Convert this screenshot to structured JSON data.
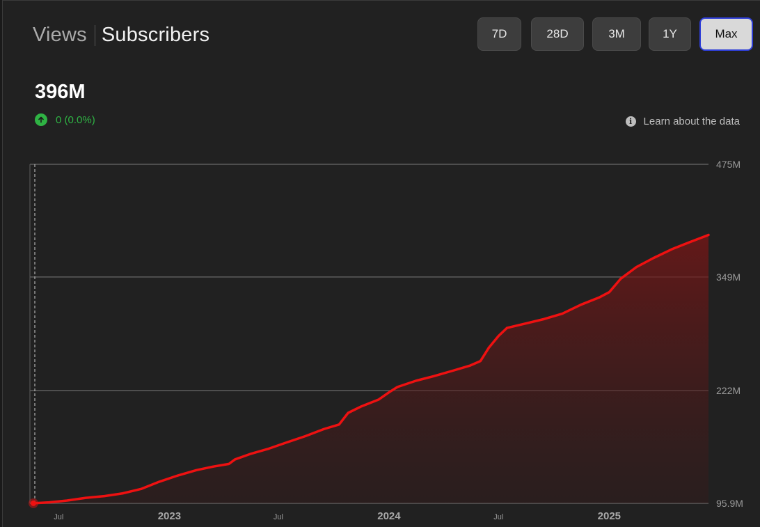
{
  "tabs": {
    "views_label": "Views",
    "subscribers_label": "Subscribers"
  },
  "range_buttons": [
    "7D",
    "28D",
    "3M",
    "1Y",
    "Max"
  ],
  "selected_range": "Max",
  "summary": {
    "value": "396M",
    "change": "0 (0.0%)",
    "change_direction": "up",
    "change_color": "#2fb344"
  },
  "learn_link": {
    "label": "Learn about the data",
    "icon": "info-icon"
  },
  "colors": {
    "line": "#ee1111",
    "fill_top": "#7a1616",
    "grid": "#5e5e5e",
    "axis_text": "#9a9a9a"
  },
  "chart_data": {
    "type": "area",
    "title": "",
    "xlabel": "",
    "ylabel": "",
    "y_ticks": [
      {
        "value": 95.9,
        "label": "95.9M"
      },
      {
        "value": 222,
        "label": "222M"
      },
      {
        "value": 349,
        "label": "349M"
      },
      {
        "value": 475,
        "label": "475M"
      }
    ],
    "ylim": [
      95.9,
      475
    ],
    "xlim": [
      "2022-05-20",
      "2025-06-15"
    ],
    "x_ticks": [
      {
        "date": "2022-07-01",
        "label": "Jul",
        "major": false
      },
      {
        "date": "2023-01-01",
        "label": "2023",
        "major": true
      },
      {
        "date": "2023-07-01",
        "label": "Jul",
        "major": false
      },
      {
        "date": "2024-01-01",
        "label": "2024",
        "major": true
      },
      {
        "date": "2024-07-01",
        "label": "Jul",
        "major": false
      },
      {
        "date": "2025-01-01",
        "label": "2025",
        "major": true
      }
    ],
    "cursor_date": "2022-05-20",
    "grid": true,
    "legend": "none",
    "series": [
      {
        "unit": "M",
        "points": [
          [
            "2022-05-20",
            96
          ],
          [
            "2022-06-15",
            97
          ],
          [
            "2022-07-15",
            99
          ],
          [
            "2022-08-15",
            102
          ],
          [
            "2022-09-15",
            104
          ],
          [
            "2022-10-15",
            107
          ],
          [
            "2022-11-15",
            112
          ],
          [
            "2022-12-15",
            120
          ],
          [
            "2023-01-15",
            127
          ],
          [
            "2023-02-15",
            133
          ],
          [
            "2023-03-15",
            137
          ],
          [
            "2023-04-10",
            140
          ],
          [
            "2023-04-20",
            145
          ],
          [
            "2023-05-15",
            151
          ],
          [
            "2023-06-15",
            157
          ],
          [
            "2023-07-15",
            164
          ],
          [
            "2023-08-15",
            171
          ],
          [
            "2023-09-15",
            179
          ],
          [
            "2023-10-10",
            184
          ],
          [
            "2023-10-25",
            197
          ],
          [
            "2023-11-15",
            204
          ],
          [
            "2023-12-15",
            212
          ],
          [
            "2024-01-01",
            220
          ],
          [
            "2024-01-15",
            226
          ],
          [
            "2024-02-15",
            233
          ],
          [
            "2024-03-15",
            238
          ],
          [
            "2024-04-15",
            244
          ],
          [
            "2024-05-15",
            250
          ],
          [
            "2024-06-01",
            255
          ],
          [
            "2024-06-15",
            270
          ],
          [
            "2024-07-01",
            283
          ],
          [
            "2024-07-15",
            292
          ],
          [
            "2024-08-15",
            297
          ],
          [
            "2024-09-15",
            302
          ],
          [
            "2024-10-15",
            308
          ],
          [
            "2024-11-15",
            318
          ],
          [
            "2024-12-15",
            326
          ],
          [
            "2025-01-01",
            332
          ],
          [
            "2025-01-20",
            347
          ],
          [
            "2025-02-15",
            360
          ],
          [
            "2025-03-15",
            370
          ],
          [
            "2025-04-15",
            380
          ],
          [
            "2025-05-15",
            388
          ],
          [
            "2025-06-15",
            396
          ]
        ]
      }
    ]
  }
}
